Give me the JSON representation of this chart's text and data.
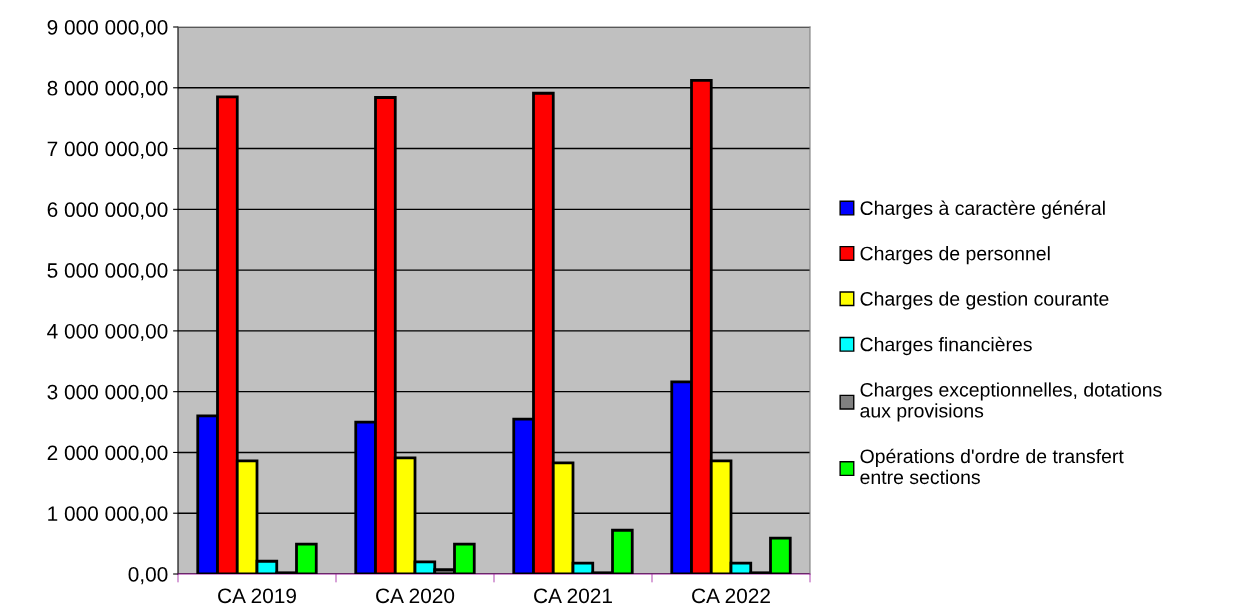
{
  "chart_data": {
    "type": "bar",
    "categories": [
      "CA 2019",
      "CA 2020",
      "CA 2021",
      "CA 2022"
    ],
    "series": [
      {
        "name": "Charges à caractère général",
        "color": "#0000ff",
        "values": [
          2600000,
          2500000,
          2550000,
          3160000
        ]
      },
      {
        "name": "Charges de personnel",
        "color": "#ff0000",
        "values": [
          7850000,
          7840000,
          7910000,
          8120000
        ]
      },
      {
        "name": "Charges de gestion courante",
        "color": "#ffff00",
        "values": [
          1860000,
          1910000,
          1830000,
          1860000
        ]
      },
      {
        "name": "Charges financières",
        "color": "#00ffff",
        "values": [
          210000,
          200000,
          180000,
          180000
        ]
      },
      {
        "name": "Charges exceptionnelles, dotations\naux provisions",
        "color": "#808080",
        "values": [
          20000,
          70000,
          20000,
          20000
        ]
      },
      {
        "name": "Opérations d'ordre de transfert\nentre sections",
        "color": "#00ff00",
        "values": [
          490000,
          490000,
          720000,
          590000
        ]
      }
    ],
    "ylim": [
      0,
      9000000
    ],
    "yticks": [
      {
        "value": 0,
        "label": "0,00"
      },
      {
        "value": 1000000,
        "label": "1 000 000,00"
      },
      {
        "value": 2000000,
        "label": "2 000 000,00"
      },
      {
        "value": 3000000,
        "label": "3 000 000,00"
      },
      {
        "value": 4000000,
        "label": "4 000 000,00"
      },
      {
        "value": 5000000,
        "label": "5 000 000,00"
      },
      {
        "value": 6000000,
        "label": "6 000 000,00"
      },
      {
        "value": 7000000,
        "label": "7 000 000,00"
      },
      {
        "value": 8000000,
        "label": "8 000 000,00"
      },
      {
        "value": 9000000,
        "label": "9 000 000,00"
      }
    ],
    "grid": "y",
    "legend": "right"
  }
}
